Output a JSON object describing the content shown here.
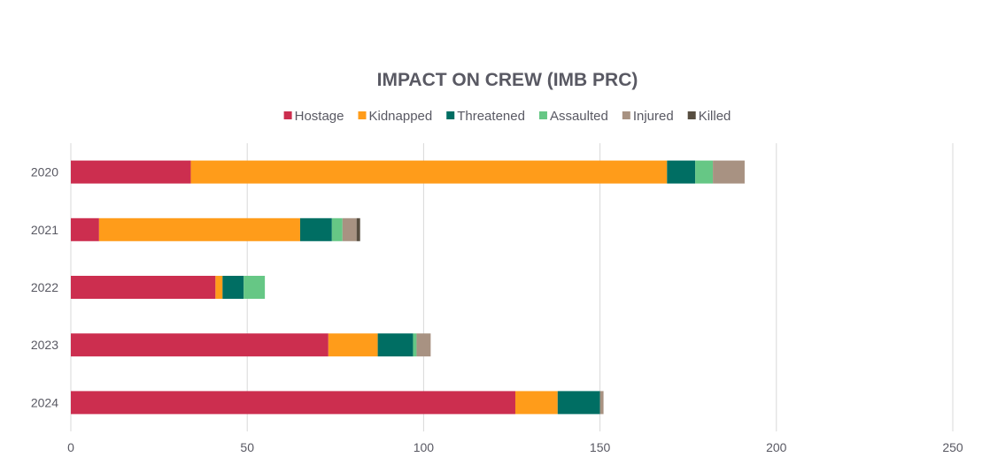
{
  "chart_data": {
    "type": "bar",
    "orientation": "horizontal",
    "stacked": true,
    "title": "IMPACT ON CREW (IMB PRC)",
    "xlabel": "",
    "ylabel": "",
    "categories": [
      "2020",
      "2021",
      "2022",
      "2023",
      "2024"
    ],
    "series": [
      {
        "name": "Hostage",
        "color": "#CC2E4F",
        "values": [
          34,
          8,
          41,
          73,
          126
        ]
      },
      {
        "name": "Kidnapped",
        "color": "#FF9C1A",
        "values": [
          135,
          57,
          2,
          14,
          12
        ]
      },
      {
        "name": "Threatened",
        "color": "#006E63",
        "values": [
          8,
          9,
          6,
          10,
          12
        ]
      },
      {
        "name": "Assaulted",
        "color": "#66C785",
        "values": [
          5,
          3,
          6,
          1,
          0
        ]
      },
      {
        "name": "Injured",
        "color": "#A89282",
        "values": [
          9,
          4,
          0,
          4,
          1
        ]
      },
      {
        "name": "Killed",
        "color": "#574D40",
        "values": [
          0,
          1,
          0,
          0,
          0
        ]
      }
    ],
    "xlim": [
      0,
      250
    ],
    "xticks": [
      0,
      50,
      100,
      150,
      200,
      250
    ],
    "grid": true,
    "legend_position": "top"
  }
}
